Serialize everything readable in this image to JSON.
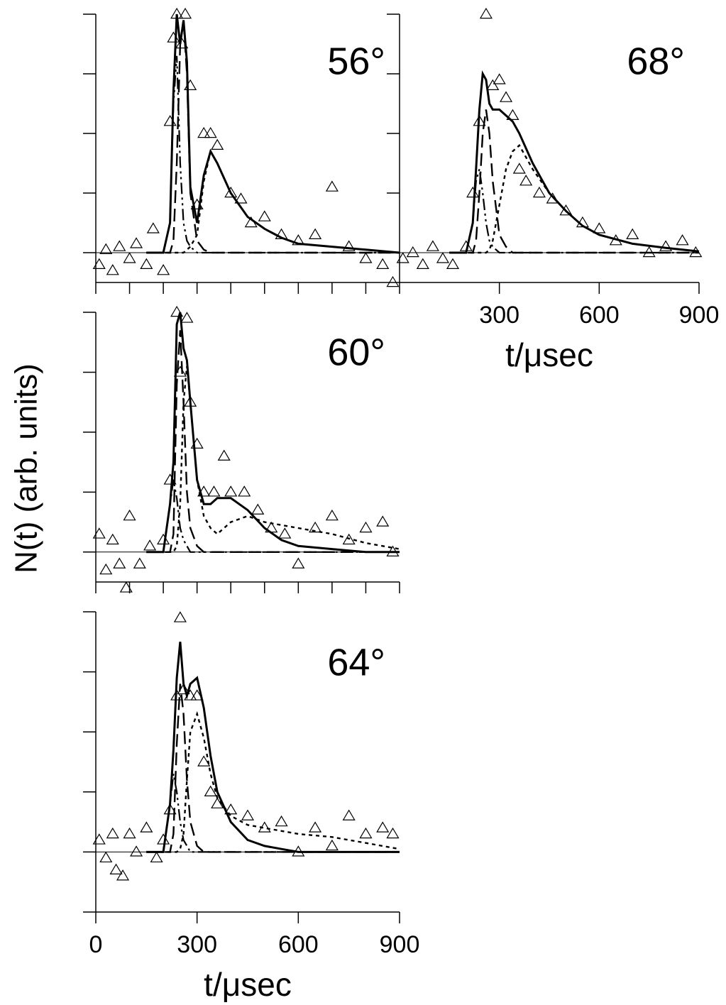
{
  "ylabel": "N(t) (arb. units)",
  "chart_data": [
    {
      "type": "line",
      "annotation": "56°",
      "xlim": [
        0,
        900
      ],
      "ylim": [
        -0.5,
        4
      ],
      "yticks": [
        0,
        1,
        2,
        3,
        4
      ],
      "xticks": [
        0,
        100,
        200,
        300,
        400,
        500,
        600,
        700,
        800,
        900
      ],
      "x": [
        150,
        200,
        220,
        230,
        240,
        250,
        260,
        270,
        280,
        300,
        320,
        340,
        360,
        400,
        450,
        500,
        550,
        600,
        700,
        800,
        900
      ],
      "series": [
        {
          "style": "solid",
          "color": "#000000",
          "values": [
            0,
            0,
            0.5,
            2.7,
            4.0,
            3.5,
            3.9,
            3.2,
            1.1,
            0.5,
            1.3,
            1.7,
            1.5,
            1.0,
            0.6,
            0.4,
            0.25,
            0.15,
            0.1,
            0.05,
            0
          ]
        },
        {
          "style": "dashdot",
          "color": "#000000",
          "values": [
            0,
            0,
            0.5,
            2.5,
            3.3,
            1.5,
            0.5,
            0.2,
            0.1,
            0,
            0,
            0,
            0,
            0,
            0,
            0,
            0,
            0,
            0,
            0,
            0
          ]
        },
        {
          "style": "longdash",
          "color": "#000000",
          "values": [
            0,
            0,
            0,
            0.2,
            1.5,
            3.5,
            3.9,
            3.0,
            1.0,
            0.2,
            0.05,
            0,
            0,
            0,
            0,
            0,
            0,
            0,
            0,
            0,
            0
          ]
        },
        {
          "style": "dotted",
          "color": "#000000",
          "values": [
            0,
            0,
            0,
            0,
            0,
            0,
            0,
            0.05,
            0.1,
            0.3,
            1.2,
            1.7,
            1.5,
            1.0,
            0.6,
            0.4,
            0.25,
            0.15,
            0.1,
            0.05,
            0
          ]
        }
      ],
      "points": {
        "marker": "triangle",
        "color": "#000000",
        "x": [
          10,
          30,
          50,
          70,
          100,
          120,
          150,
          170,
          200,
          220,
          230,
          240,
          255,
          265,
          280,
          300,
          320,
          340,
          360,
          400,
          430,
          460,
          500,
          550,
          600,
          650,
          700,
          750,
          800,
          850,
          880
        ],
        "values": [
          -0.2,
          0.05,
          -0.3,
          0.1,
          -0.1,
          0.15,
          -0.2,
          0.4,
          -0.3,
          2.2,
          3.6,
          4.0,
          3.5,
          4.0,
          2.8,
          0.8,
          2.0,
          2.0,
          1.8,
          1.0,
          0.9,
          0.5,
          0.6,
          0.3,
          0.2,
          0.3,
          1.1,
          0.1,
          -0.1,
          -0.2,
          -0.5
        ]
      }
    },
    {
      "type": "line",
      "annotation": "68°",
      "xlabel": "t/μsec",
      "xlim": [
        0,
        900
      ],
      "ylim": [
        -0.5,
        4
      ],
      "yticks": [
        0,
        1,
        2,
        3,
        4
      ],
      "xticks": [
        300,
        600,
        900
      ],
      "x": [
        150,
        200,
        220,
        230,
        240,
        250,
        260,
        270,
        280,
        300,
        320,
        340,
        360,
        400,
        450,
        500,
        550,
        600,
        700,
        800,
        900
      ],
      "series": [
        {
          "style": "solid",
          "color": "#000000",
          "values": [
            0,
            0,
            0.5,
            1.4,
            2.4,
            3.0,
            2.9,
            2.5,
            2.4,
            2.4,
            2.3,
            2.2,
            2.0,
            1.5,
            1.0,
            0.7,
            0.45,
            0.3,
            0.15,
            0.08,
            0.02
          ]
        },
        {
          "style": "dashdot",
          "color": "#000000",
          "values": [
            0,
            0,
            0.5,
            1.2,
            1.4,
            1.0,
            0.5,
            0.2,
            0.1,
            0,
            0,
            0,
            0,
            0,
            0,
            0,
            0,
            0,
            0,
            0,
            0
          ]
        },
        {
          "style": "longdash",
          "color": "#000000",
          "values": [
            0,
            0,
            0,
            0.2,
            1.0,
            2.0,
            2.4,
            2.0,
            1.2,
            0.3,
            0.1,
            0,
            0,
            0,
            0,
            0,
            0,
            0,
            0,
            0,
            0
          ]
        },
        {
          "style": "dotted",
          "color": "#000000",
          "values": [
            0,
            0,
            0,
            0,
            0,
            0,
            0,
            0.05,
            0.2,
            0.8,
            1.4,
            1.7,
            1.8,
            1.4,
            1.0,
            0.7,
            0.45,
            0.3,
            0.15,
            0.08,
            0.02
          ]
        }
      ],
      "points": {
        "marker": "triangle",
        "color": "#000000",
        "x": [
          10,
          40,
          70,
          100,
          130,
          160,
          200,
          220,
          240,
          260,
          280,
          300,
          320,
          340,
          360,
          380,
          420,
          460,
          500,
          550,
          600,
          650,
          700,
          750,
          800,
          850,
          890
        ],
        "values": [
          -0.1,
          0,
          -0.2,
          0.1,
          -0.1,
          -0.2,
          0.1,
          1.0,
          2.2,
          4.0,
          2.8,
          2.9,
          2.6,
          2.3,
          1.4,
          1.2,
          1.0,
          0.9,
          0.7,
          0.5,
          0.4,
          0.2,
          0.3,
          0,
          0.1,
          0.2,
          0
        ]
      }
    },
    {
      "type": "line",
      "annotation": "60°",
      "xlim": [
        0,
        900
      ],
      "ylim": [
        -0.5,
        4
      ],
      "yticks": [
        0,
        1,
        2,
        3,
        4
      ],
      "xticks": [
        0,
        100,
        200,
        300,
        400,
        500,
        600,
        700,
        800,
        900
      ],
      "x": [
        150,
        200,
        220,
        230,
        240,
        250,
        260,
        270,
        280,
        300,
        320,
        340,
        360,
        400,
        450,
        500,
        550,
        600,
        700,
        800,
        900
      ],
      "series": [
        {
          "style": "solid",
          "color": "#000000",
          "values": [
            0,
            0,
            0.8,
            1.5,
            3.8,
            4.0,
            3.4,
            3.2,
            2.5,
            1.2,
            0.8,
            0.8,
            0.9,
            0.9,
            0.7,
            0.4,
            0.2,
            0.1,
            0.05,
            0,
            0
          ]
        },
        {
          "style": "dashdot",
          "color": "#000000",
          "values": [
            0,
            0,
            0.8,
            1.2,
            0.9,
            0.4,
            0.2,
            0.1,
            0,
            0,
            0,
            0,
            0,
            0,
            0,
            0,
            0,
            0,
            0,
            0,
            0
          ]
        },
        {
          "style": "longdash",
          "color": "#000000",
          "values": [
            0,
            0,
            0,
            0.3,
            2.8,
            3.7,
            2.5,
            1.0,
            0.4,
            0.1,
            0,
            0,
            0,
            0,
            0,
            0,
            0,
            0,
            0,
            0,
            0
          ]
        },
        {
          "style": "dotted",
          "color": "#000000",
          "values": [
            0,
            0,
            0,
            0,
            0.1,
            0.8,
            2.5,
            3.1,
            2.5,
            1.2,
            0.6,
            0.4,
            0.3,
            0.5,
            0.6,
            0.5,
            0.45,
            0.4,
            0.3,
            0.15,
            0.05
          ]
        }
      ],
      "points": {
        "marker": "triangle",
        "color": "#000000",
        "x": [
          10,
          30,
          50,
          70,
          90,
          100,
          130,
          160,
          200,
          220,
          240,
          250,
          270,
          280,
          300,
          320,
          350,
          380,
          400,
          440,
          480,
          520,
          560,
          600,
          650,
          700,
          750,
          800,
          850,
          880
        ],
        "values": [
          0.3,
          -0.3,
          0.2,
          -0.2,
          -0.6,
          0.6,
          -0.2,
          0.1,
          0.2,
          1.2,
          4.0,
          3.0,
          3.9,
          2.5,
          1.8,
          1.0,
          1.0,
          1.6,
          1.0,
          1.0,
          0.7,
          0.4,
          0.3,
          -0.2,
          0.4,
          0.6,
          0.2,
          0.4,
          0.5,
          0
        ]
      }
    },
    {
      "type": "line",
      "annotation": "64°",
      "xlabel": "t/μsec",
      "xlim": [
        0,
        900
      ],
      "ylim": [
        -1,
        4
      ],
      "yticks": [
        -1,
        0,
        1,
        2,
        3,
        4
      ],
      "xticks": [
        0,
        300,
        600,
        900
      ],
      "x": [
        150,
        200,
        220,
        230,
        240,
        250,
        260,
        270,
        280,
        300,
        320,
        340,
        360,
        400,
        450,
        500,
        550,
        600,
        700,
        800,
        900
      ],
      "series": [
        {
          "style": "solid",
          "color": "#000000",
          "values": [
            0,
            0,
            0.8,
            1.7,
            2.9,
            3.5,
            2.8,
            2.6,
            2.8,
            2.9,
            2.4,
            1.6,
            1.0,
            0.5,
            0.2,
            0.1,
            0.05,
            0,
            0,
            0,
            0
          ]
        },
        {
          "style": "dashdot",
          "color": "#000000",
          "values": [
            0,
            0,
            0.8,
            1.3,
            1.0,
            0.5,
            0.2,
            0.1,
            0,
            0,
            0,
            0,
            0,
            0,
            0,
            0,
            0,
            0,
            0,
            0,
            0
          ]
        },
        {
          "style": "longdash",
          "color": "#000000",
          "values": [
            0,
            0,
            0,
            0.3,
            1.8,
            2.8,
            2.3,
            1.2,
            0.5,
            0.1,
            0,
            0,
            0,
            0,
            0,
            0,
            0,
            0,
            0,
            0,
            0
          ]
        },
        {
          "style": "dotted",
          "color": "#000000",
          "values": [
            0,
            0,
            0,
            0,
            0,
            0.05,
            0.3,
            1.2,
            2.0,
            2.3,
            1.9,
            1.3,
            0.9,
            0.6,
            0.45,
            0.4,
            0.35,
            0.3,
            0.25,
            0.15,
            0.05
          ]
        }
      ],
      "points": {
        "marker": "triangle",
        "color": "#000000",
        "x": [
          10,
          30,
          50,
          60,
          80,
          100,
          120,
          150,
          180,
          200,
          220,
          240,
          250,
          260,
          280,
          300,
          320,
          340,
          360,
          400,
          450,
          500,
          550,
          600,
          650,
          700,
          750,
          800,
          850,
          880
        ],
        "values": [
          0.2,
          -0.1,
          0.3,
          -0.3,
          -0.4,
          0.3,
          0,
          0.4,
          -0.1,
          0.2,
          0.7,
          2.6,
          3.9,
          2.7,
          2.6,
          2.6,
          1.5,
          1.0,
          0.8,
          0.7,
          0.6,
          0.4,
          0.5,
          0,
          0.4,
          0.1,
          0.6,
          0.3,
          0.4,
          0.3
        ]
      }
    }
  ]
}
